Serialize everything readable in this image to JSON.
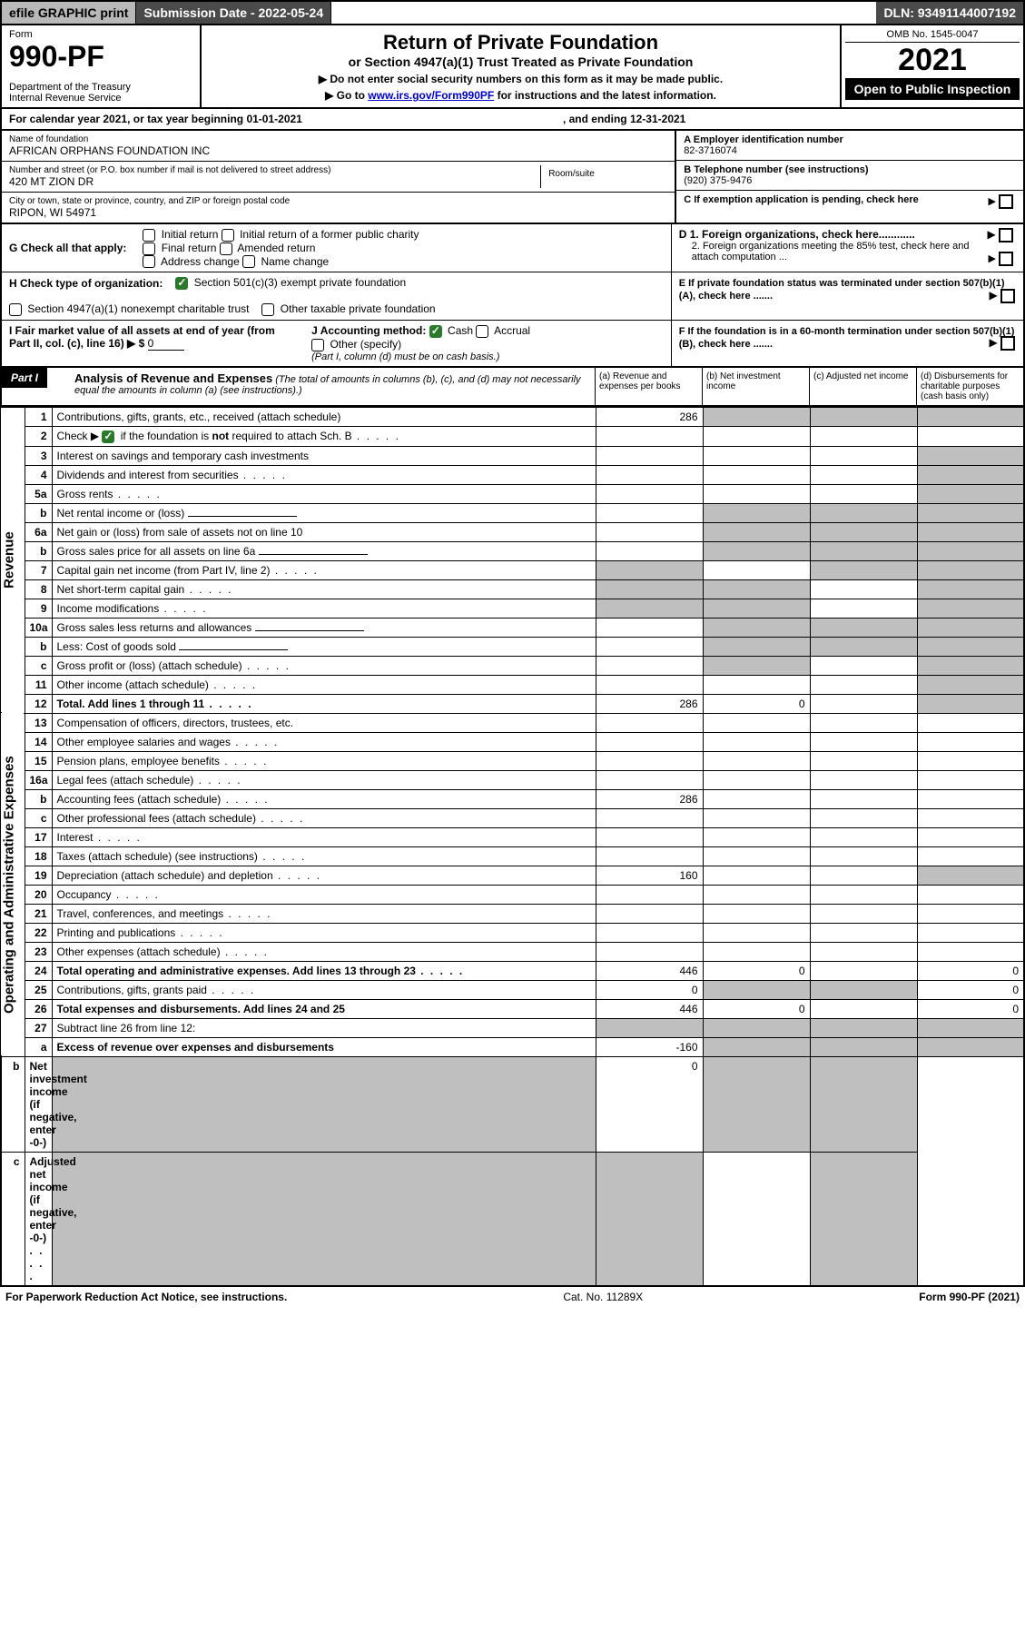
{
  "topbar": {
    "efile": "efile GRAPHIC print",
    "subdate_label": "Submission Date -",
    "subdate": "2022-05-24",
    "dln_label": "DLN:",
    "dln": "93491144007192"
  },
  "header": {
    "form_label": "Form",
    "form_no": "990-PF",
    "dept": "Department of the Treasury",
    "irs": "Internal Revenue Service",
    "title": "Return of Private Foundation",
    "subtitle": "or Section 4947(a)(1) Trust Treated as Private Foundation",
    "note1": "▶ Do not enter social security numbers on this form as it may be made public.",
    "note2_pre": "▶ Go to ",
    "note2_link": "www.irs.gov/Form990PF",
    "note2_post": " for instructions and the latest information.",
    "omb": "OMB No. 1545-0047",
    "year": "2021",
    "open": "Open to Public Inspection"
  },
  "calendar": {
    "text_pre": "For calendar year 2021, or tax year beginning ",
    "begin": "01-01-2021",
    "text_mid": ", and ending ",
    "end": "12-31-2021"
  },
  "entity": {
    "name_label": "Name of foundation",
    "name": "AFRICAN ORPHANS FOUNDATION INC",
    "addr_label": "Number and street (or P.O. box number if mail is not delivered to street address)",
    "addr": "420 MT ZION DR",
    "room_label": "Room/suite",
    "city_label": "City or town, state or province, country, and ZIP or foreign postal code",
    "city": "RIPON, WI  54971",
    "A_label": "A Employer identification number",
    "A": "82-3716074",
    "B_label": "B Telephone number (see instructions)",
    "B": "(920) 375-9476",
    "C": "C If exemption application is pending, check here",
    "D1": "D 1. Foreign organizations, check here............",
    "D2": "2. Foreign organizations meeting the 85% test, check here and attach computation ...",
    "E": "E  If private foundation status was terminated under section 507(b)(1)(A), check here .......",
    "F": "F  If the foundation is in a 60-month termination under section 507(b)(1)(B), check here .......",
    "G_label": "G Check all that apply:",
    "G_opts": [
      "Initial return",
      "Initial return of a former public charity",
      "Final return",
      "Amended return",
      "Address change",
      "Name change"
    ],
    "H_label": "H Check type of organization:",
    "H_opts": [
      "Section 501(c)(3) exempt private foundation",
      "Section 4947(a)(1) nonexempt charitable trust",
      "Other taxable private foundation"
    ],
    "H_checked": 0,
    "I_label": "I Fair market value of all assets at end of year (from Part II, col. (c), line 16)",
    "I_prefix": "▶ $",
    "I_val": "0",
    "J_label": "J Accounting method:",
    "J_opts": [
      "Cash",
      "Accrual",
      "Other (specify)"
    ],
    "J_checked": 0,
    "J_note": "(Part I, column (d) must be on cash basis.)"
  },
  "partI": {
    "label": "Part I",
    "heading": "Analysis of Revenue and Expenses",
    "heading_note": "(The total of amounts in columns (b), (c), and (d) may not necessarily equal the amounts in column (a) (see instructions).)",
    "cols": [
      "(a)  Revenue and expenses per books",
      "(b)  Net investment income",
      "(c)  Adjusted net income",
      "(d)  Disbursements for charitable purposes (cash basis only)"
    ]
  },
  "lines": {
    "revenue_label": "Revenue",
    "expenses_label": "Operating and Administrative Expenses",
    "rows": [
      {
        "n": "1",
        "t": "Contributions, gifts, grants, etc., received (attach schedule)",
        "a": "286",
        "grey": [
          false,
          true,
          true,
          true
        ]
      },
      {
        "n": "2",
        "t": "Check ▶ ☑ if the foundation is not required to attach Sch. B",
        "a": "",
        "nocells": true,
        "chk": true,
        "dots": true
      },
      {
        "n": "3",
        "t": "Interest on savings and temporary cash investments",
        "a": "",
        "grey": [
          false,
          false,
          false,
          true
        ]
      },
      {
        "n": "4",
        "t": "Dividends and interest from securities",
        "a": "",
        "grey": [
          false,
          false,
          false,
          true
        ],
        "dots": true
      },
      {
        "n": "5a",
        "t": "Gross rents",
        "a": "",
        "grey": [
          false,
          false,
          false,
          true
        ],
        "dots": true
      },
      {
        "n": "b",
        "t": "Net rental income or (loss)",
        "a": "",
        "shortcell": true,
        "grey": [
          false,
          true,
          true,
          true
        ]
      },
      {
        "n": "6a",
        "t": "Net gain or (loss) from sale of assets not on line 10",
        "a": "",
        "grey": [
          false,
          true,
          true,
          true
        ]
      },
      {
        "n": "b",
        "t": "Gross sales price for all assets on line 6a",
        "a": "",
        "shortcell": true,
        "grey": [
          false,
          true,
          true,
          true
        ]
      },
      {
        "n": "7",
        "t": "Capital gain net income (from Part IV, line 2)",
        "a": "",
        "grey": [
          true,
          false,
          true,
          true
        ],
        "dots": true
      },
      {
        "n": "8",
        "t": "Net short-term capital gain",
        "a": "",
        "grey": [
          true,
          true,
          false,
          true
        ],
        "dots": true
      },
      {
        "n": "9",
        "t": "Income modifications",
        "a": "",
        "grey": [
          true,
          true,
          false,
          true
        ],
        "dots": true
      },
      {
        "n": "10a",
        "t": "Gross sales less returns and allowances",
        "a": "",
        "shortcell": true,
        "grey": [
          false,
          true,
          true,
          true
        ]
      },
      {
        "n": "b",
        "t": "Less: Cost of goods sold",
        "a": "",
        "shortcell": true,
        "grey": [
          false,
          true,
          true,
          true
        ],
        "dots": true
      },
      {
        "n": "c",
        "t": "Gross profit or (loss) (attach schedule)",
        "a": "",
        "grey": [
          false,
          true,
          false,
          true
        ],
        "dots": true
      },
      {
        "n": "11",
        "t": "Other income (attach schedule)",
        "a": "",
        "grey": [
          false,
          false,
          false,
          true
        ],
        "dots": true
      },
      {
        "n": "12",
        "t": "Total. Add lines 1 through 11",
        "a": "286",
        "b": "0",
        "bold": true,
        "grey": [
          false,
          false,
          false,
          true
        ],
        "dots": true
      },
      {
        "n": "13",
        "t": "Compensation of officers, directors, trustees, etc.",
        "a": ""
      },
      {
        "n": "14",
        "t": "Other employee salaries and wages",
        "a": "",
        "dots": true
      },
      {
        "n": "15",
        "t": "Pension plans, employee benefits",
        "a": "",
        "dots": true
      },
      {
        "n": "16a",
        "t": "Legal fees (attach schedule)",
        "a": "",
        "dots": true
      },
      {
        "n": "b",
        "t": "Accounting fees (attach schedule)",
        "a": "286",
        "dots": true
      },
      {
        "n": "c",
        "t": "Other professional fees (attach schedule)",
        "a": "",
        "dots": true
      },
      {
        "n": "17",
        "t": "Interest",
        "a": "",
        "dots": true
      },
      {
        "n": "18",
        "t": "Taxes (attach schedule) (see instructions)",
        "a": "",
        "dots": true
      },
      {
        "n": "19",
        "t": "Depreciation (attach schedule) and depletion",
        "a": "160",
        "grey": [
          false,
          false,
          false,
          true
        ],
        "dots": true
      },
      {
        "n": "20",
        "t": "Occupancy",
        "a": "",
        "dots": true
      },
      {
        "n": "21",
        "t": "Travel, conferences, and meetings",
        "a": "",
        "dots": true
      },
      {
        "n": "22",
        "t": "Printing and publications",
        "a": "",
        "dots": true
      },
      {
        "n": "23",
        "t": "Other expenses (attach schedule)",
        "a": "",
        "dots": true
      },
      {
        "n": "24",
        "t": "Total operating and administrative expenses. Add lines 13 through 23",
        "a": "446",
        "b": "0",
        "d": "0",
        "bold": true,
        "dots": true
      },
      {
        "n": "25",
        "t": "Contributions, gifts, grants paid",
        "a": "0",
        "d": "0",
        "grey": [
          false,
          true,
          true,
          false
        ],
        "dots": true
      },
      {
        "n": "26",
        "t": "Total expenses and disbursements. Add lines 24 and 25",
        "a": "446",
        "b": "0",
        "d": "0",
        "bold": true
      },
      {
        "n": "27",
        "t": "Subtract line 26 from line 12:",
        "a": "",
        "grey": [
          true,
          true,
          true,
          true
        ]
      },
      {
        "n": "a",
        "t": "Excess of revenue over expenses and disbursements",
        "a": "-160",
        "bold": true,
        "grey": [
          false,
          true,
          true,
          true
        ]
      },
      {
        "n": "b",
        "t": "Net investment income (if negative, enter -0-)",
        "a": "",
        "b": "0",
        "bold": true,
        "grey": [
          true,
          false,
          true,
          true
        ]
      },
      {
        "n": "c",
        "t": "Adjusted net income (if negative, enter -0-)",
        "a": "",
        "bold": true,
        "grey": [
          true,
          true,
          false,
          true
        ],
        "dots": true
      }
    ]
  },
  "footer": {
    "left": "For Paperwork Reduction Act Notice, see instructions.",
    "mid": "Cat. No. 11289X",
    "right": "Form 990-PF (2021)"
  },
  "style": {
    "revenue_rowspan": 16,
    "expenses_rowspan": 18,
    "colors": {
      "topbar_grey": "#b8b8b8",
      "topbar_dark": "#4a4a4a",
      "cell_grey": "#bfbfbf",
      "check_green": "#2b7a2b",
      "link": "#0000cc"
    }
  }
}
